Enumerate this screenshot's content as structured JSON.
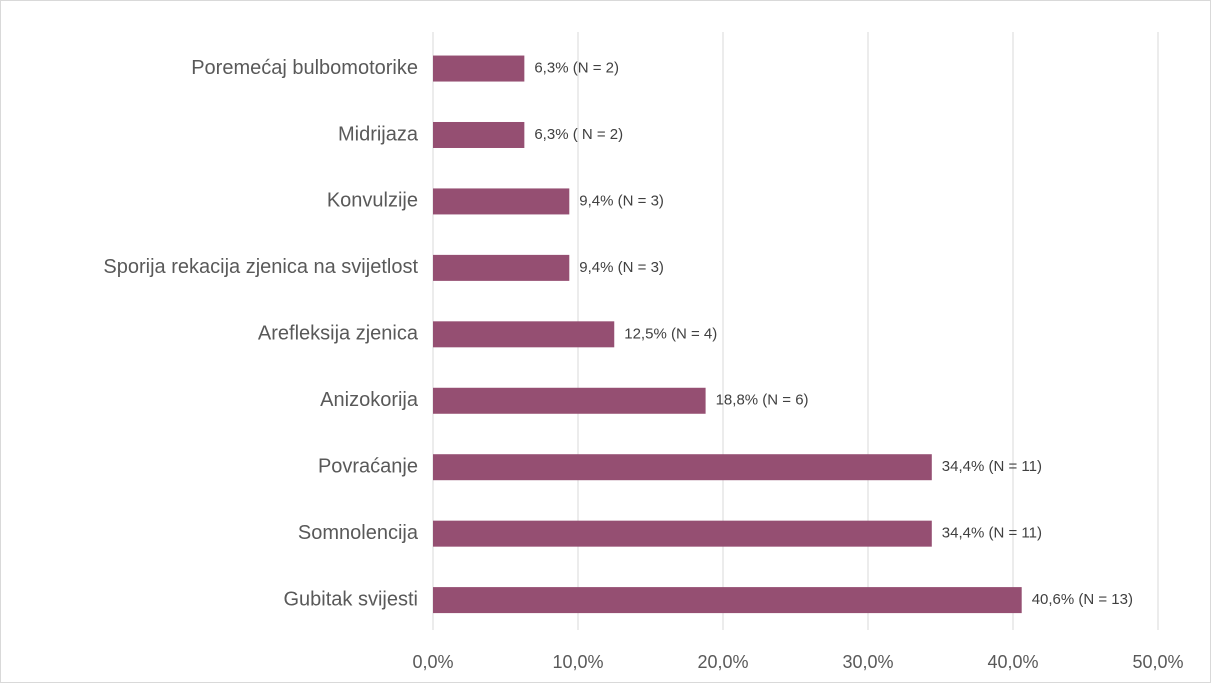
{
  "chart_data": {
    "type": "hbar",
    "categories": [
      "Poremećaj bulbomotorike",
      "Midrijaza",
      "Konvulzije",
      "Sporija rekacija zjenica na svijetlost",
      "Arefleksija zjenica",
      "Anizokorija",
      "Povraćanje",
      "Somnolencija",
      "Gubitak svijesti"
    ],
    "values": [
      6.3,
      6.3,
      9.4,
      9.4,
      12.5,
      18.8,
      34.4,
      34.4,
      40.6
    ],
    "value_labels": [
      "6,3% (N = 2)",
      "6,3% ( N = 2)",
      "9,4% (N = 3)",
      "9,4% (N = 3)",
      "12,5% (N = 4)",
      "18,8% (N = 6)",
      "34,4% (N = 11)",
      "34,4% (N = 11)",
      "40,6% (N = 13)"
    ],
    "color": "#954f72",
    "xlim": [
      0,
      50
    ],
    "xticks": [
      {
        "value": 0,
        "label": "0,0%"
      },
      {
        "value": 10,
        "label": "10,0%"
      },
      {
        "value": 20,
        "label": "20,0%"
      },
      {
        "value": 30,
        "label": "30,0%"
      },
      {
        "value": 40,
        "label": "40,0%"
      },
      {
        "value": 50,
        "label": "50,0%"
      }
    ],
    "grid": true
  }
}
